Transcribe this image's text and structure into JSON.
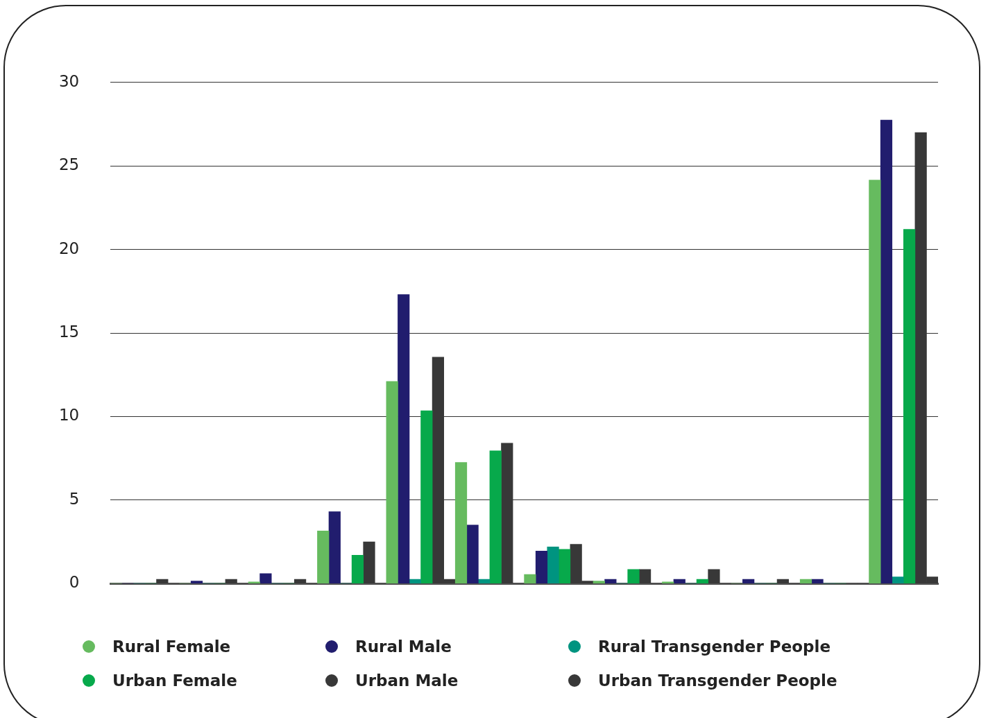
{
  "chart_data": {
    "type": "bar",
    "categories": [
      null,
      null,
      null,
      null,
      null,
      null,
      null,
      null,
      null,
      null,
      null,
      null
    ],
    "series": [
      {
        "name": "Rural Female",
        "color": "#66bb5f",
        "values": [
          0,
          0,
          0.1,
          3.15,
          12.1,
          7.25,
          0.55,
          0.15,
          0.1,
          0,
          0.25,
          24.15
        ]
      },
      {
        "name": "Rural Male",
        "color": "#211d6e",
        "values": [
          0,
          0.15,
          0.6,
          4.3,
          17.3,
          3.5,
          1.95,
          0.25,
          0.25,
          0.25,
          0.25,
          27.75
        ]
      },
      {
        "name": "Rural Transgender People",
        "color": "#009480",
        "values": [
          0,
          0,
          0,
          0,
          0.25,
          0.25,
          2.2,
          0,
          0,
          0,
          0,
          0.4
        ]
      },
      {
        "name": "Urban Female",
        "color": "#07a94b",
        "values": [
          0,
          0,
          0,
          1.7,
          10.35,
          7.95,
          2.05,
          0.85,
          0.25,
          0,
          0,
          21.2
        ]
      },
      {
        "name": "Urban Male",
        "color": "#383838",
        "values": [
          0.25,
          0.25,
          0.25,
          2.5,
          13.55,
          8.4,
          2.35,
          0.85,
          0.85,
          0.25,
          0,
          27
        ]
      },
      {
        "name": "Urban Transgender People",
        "color": "#383838",
        "values": [
          0,
          0,
          0,
          0,
          0.25,
          0,
          0.15,
          0,
          0,
          0,
          0,
          0.4
        ]
      }
    ],
    "ylim": [
      0,
      30
    ],
    "yticks": [
      0,
      5,
      10,
      15,
      20,
      25,
      30
    ],
    "grid": "y",
    "tick_labels": "y",
    "legend": "bottom"
  }
}
